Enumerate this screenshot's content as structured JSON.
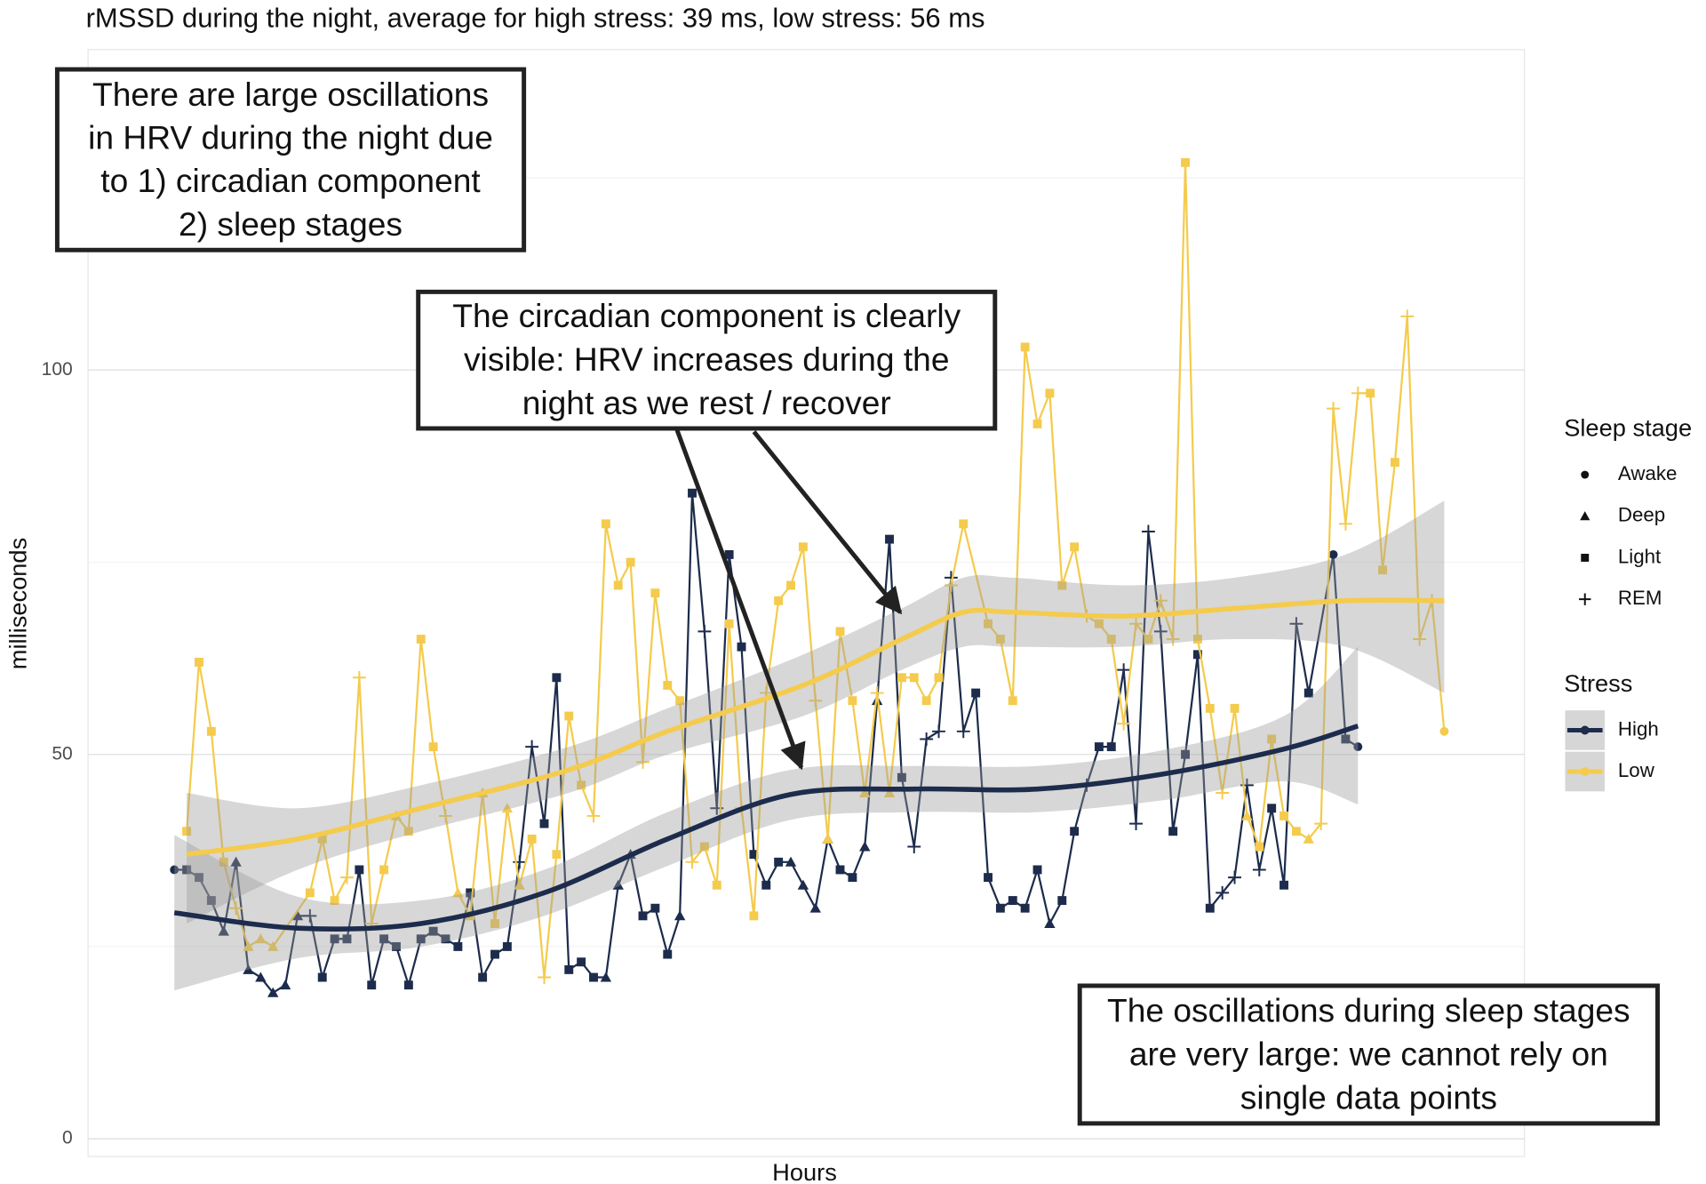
{
  "chart_data": {
    "type": "line",
    "title": "rMSSD during the night, average for high stress: 39 ms, low stress: 56 ms",
    "x_label": "Hours",
    "y_label": "milliseconds",
    "xlim": [
      -7,
      109.5
    ],
    "ylim": [
      -2.3,
      141.7
    ],
    "yticks": [
      0,
      50,
      100
    ],
    "yminor": [
      25,
      75,
      125
    ],
    "grid": true,
    "legend": {
      "stage_title": "Sleep stage",
      "stages": [
        "Awake",
        "Deep",
        "Light",
        "REM"
      ],
      "stress_title": "Stress"
    },
    "series": [
      {
        "name": "High",
        "color": "#1d2c4c",
        "x": [
          0,
          1,
          2,
          3,
          4,
          5,
          6,
          7,
          8,
          9,
          10,
          11,
          12,
          13,
          14,
          15,
          16,
          17,
          18,
          19,
          20,
          21,
          22,
          23,
          24,
          25,
          26,
          27,
          28,
          29,
          30,
          31,
          32,
          33,
          34,
          35,
          36,
          37,
          38,
          39,
          40,
          41,
          42,
          43,
          44,
          45,
          46,
          47,
          48,
          49,
          50,
          51,
          52,
          53,
          54,
          55,
          56,
          57,
          58,
          59,
          60,
          61,
          62,
          63,
          64,
          65,
          66,
          67,
          68,
          69,
          70,
          71,
          72,
          73,
          74,
          75,
          76,
          77,
          78,
          79,
          80,
          81,
          82,
          83,
          84,
          85,
          86,
          87,
          88,
          89,
          90,
          91,
          92,
          94,
          95,
          96
        ],
        "values": [
          35,
          35,
          34,
          31,
          27,
          36,
          22,
          21,
          19,
          20,
          29,
          29,
          21,
          26,
          26,
          35,
          20,
          26,
          25,
          20,
          26,
          27,
          26,
          25,
          32,
          21,
          24,
          25,
          36,
          51,
          41,
          60,
          22,
          23,
          21,
          21,
          33,
          37,
          29,
          30,
          24,
          29,
          84,
          66,
          43,
          76,
          64,
          37,
          33,
          36,
          36,
          33,
          30,
          39,
          35,
          34,
          38,
          57,
          78,
          47,
          38,
          52,
          53,
          73,
          53,
          58,
          34,
          30,
          31,
          30,
          35,
          28,
          31,
          40,
          46,
          51,
          51,
          61,
          41,
          79,
          66,
          40,
          50,
          63,
          30,
          32,
          34,
          46,
          35,
          43,
          33,
          67,
          58,
          76,
          52,
          51
        ],
        "stages": [
          "Awake",
          "Light",
          "Light",
          "Light",
          "Deep",
          "Deep",
          "Deep",
          "Deep",
          "Deep",
          "Deep",
          "Deep",
          "REM",
          "Light",
          "Light",
          "Light",
          "Light",
          "Light",
          "Light",
          "Light",
          "Light",
          "Light",
          "Light",
          "Light",
          "Light",
          "Light",
          "Light",
          "Light",
          "Light",
          "REM",
          "REM",
          "Light",
          "Light",
          "Light",
          "Light",
          "Light",
          "Deep",
          "Deep",
          "Deep",
          "Light",
          "Light",
          "Light",
          "Deep",
          "Light",
          "REM",
          "REM",
          "Light",
          "Light",
          "Light",
          "Light",
          "Light",
          "Deep",
          "Deep",
          "Deep",
          "Deep",
          "Light",
          "Light",
          "Deep",
          "Deep",
          "Light",
          "Light",
          "REM",
          "REM",
          "REM",
          "REM",
          "REM",
          "Light",
          "Light",
          "Light",
          "Light",
          "Light",
          "Light",
          "Deep",
          "Light",
          "Light",
          "REM",
          "Light",
          "Light",
          "REM",
          "REM",
          "REM",
          "REM",
          "Light",
          "Light",
          "Light",
          "Light",
          "REM",
          "REM",
          "REM",
          "REM",
          "Light",
          "Light",
          "REM",
          "Light",
          "Awake",
          "Light",
          "Awake"
        ],
        "smooth": {
          "x": [
            0,
            10,
            20,
            30,
            40,
            50,
            60,
            70,
            80,
            90,
            96
          ],
          "fit": [
            29.4,
            27.4,
            28,
            32,
            39,
            44.8,
            45.5,
            45.5,
            47.4,
            50.7,
            53.7
          ],
          "lower": [
            19.3,
            23.5,
            25,
            29,
            35.5,
            41.5,
            42.5,
            42.5,
            44,
            46.5,
            43.5
          ],
          "upper": [
            39.5,
            31.5,
            31,
            35,
            42.5,
            48,
            48.5,
            48.5,
            50.5,
            55,
            64
          ]
        }
      },
      {
        "name": "Low",
        "color": "#f4cb4d",
        "x": [
          1,
          2,
          3,
          4,
          5,
          6,
          7,
          8,
          11,
          12,
          13,
          14,
          15,
          16,
          17,
          18,
          19,
          20,
          21,
          22,
          23,
          24,
          25,
          26,
          27,
          28,
          29,
          30,
          31,
          32,
          33,
          34,
          35,
          36,
          37,
          38,
          39,
          40,
          41,
          42,
          43,
          44,
          45,
          46,
          47,
          48,
          49,
          50,
          51,
          52,
          53,
          54,
          55,
          56,
          57,
          58,
          59,
          60,
          61,
          62,
          63,
          64,
          66,
          67,
          68,
          69,
          70,
          71,
          72,
          73,
          74,
          75,
          76,
          77,
          78,
          79,
          80,
          81,
          82,
          83,
          84,
          85,
          86,
          87,
          88,
          89,
          90,
          91,
          92,
          93,
          94,
          95,
          96,
          97,
          98,
          99,
          100,
          101,
          102,
          103
        ],
        "values": [
          40,
          62,
          53,
          36,
          30,
          25,
          26,
          25,
          32,
          39,
          31,
          34,
          60,
          28,
          35,
          42,
          40,
          65,
          51,
          42,
          32,
          29,
          45,
          28,
          43,
          33,
          39,
          21,
          37,
          55,
          46,
          42,
          80,
          72,
          75,
          49,
          71,
          59,
          57,
          36,
          38,
          33,
          67,
          43,
          29,
          58,
          70,
          72,
          77,
          57,
          39,
          66,
          57,
          45,
          58,
          45,
          60,
          60,
          57,
          60,
          72,
          80,
          67,
          65,
          57,
          103,
          93,
          97,
          72,
          77,
          68,
          67,
          65,
          54,
          67,
          65,
          70,
          65,
          127,
          65,
          56,
          45,
          56,
          42,
          38,
          52,
          42,
          40,
          39,
          41,
          95,
          80,
          97,
          97,
          74,
          88,
          107,
          65,
          70,
          53
        ],
        "stages": [
          "Light",
          "Light",
          "Light",
          "Light",
          "REM",
          "Deep",
          "Deep",
          "Deep",
          "Light",
          "Light",
          "Light",
          "REM",
          "REM",
          "REM",
          "Light",
          "Deep",
          "Light",
          "Light",
          "Light",
          "REM",
          "Deep",
          "Light",
          "Deep",
          "Light",
          "Deep",
          "Deep",
          "Light",
          "REM",
          "Light",
          "Light",
          "Light",
          "REM",
          "Light",
          "Light",
          "Light",
          "REM",
          "Light",
          "Light",
          "Light",
          "REM",
          "Light",
          "Light",
          "Light",
          "REM",
          "Light",
          "REM",
          "Light",
          "Light",
          "Light",
          "REM",
          "Deep",
          "Light",
          "Light",
          "Deep",
          "REM",
          "Deep",
          "Light",
          "Light",
          "Light",
          "Light",
          "REM",
          "Light",
          "Light",
          "Light",
          "Light",
          "Light",
          "Light",
          "Light",
          "Light",
          "Light",
          "REM",
          "Light",
          "Light",
          "REM",
          "REM",
          "Light",
          "REM",
          "REM",
          "Light",
          "Light",
          "Light",
          "REM",
          "Light",
          "Deep",
          "Light",
          "Light",
          "Light",
          "Light",
          "Deep",
          "REM",
          "REM",
          "REM",
          "REM",
          "Light",
          "Light",
          "Light",
          "REM",
          "REM",
          "REM",
          "Awake"
        ],
        "smooth": {
          "x": [
            1,
            10,
            20,
            32,
            40,
            51,
            59,
            64,
            68,
            77,
            86,
            95,
            103
          ],
          "fit": [
            37,
            39,
            43,
            48,
            53,
            59,
            65,
            68.5,
            68.5,
            68,
            69,
            70,
            70
          ],
          "lower": [
            28,
            35,
            40,
            45,
            50,
            55,
            61,
            64,
            64,
            64,
            65,
            64,
            58
          ],
          "upper": [
            45,
            43,
            46,
            51,
            56,
            63,
            69,
            73,
            73,
            72,
            73,
            76,
            83
          ]
        }
      }
    ],
    "annotations": [
      {
        "lines": [
          "There are large oscillations",
          "in HRV during the night due",
          "to 1) circadian component",
          "2) sleep stages"
        ]
      },
      {
        "lines": [
          "The circadian component is clearly",
          "visible: HRV increases during the",
          "night as we rest / recover"
        ]
      },
      {
        "lines": [
          "The oscillations during sleep stages",
          "are very large: we cannot rely on",
          "single data points"
        ]
      }
    ]
  }
}
